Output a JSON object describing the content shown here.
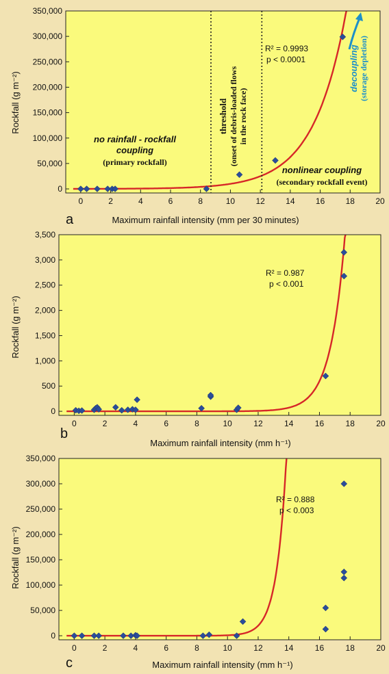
{
  "colors": {
    "background": "#f2e3b3",
    "plot_area": "#fafa7c",
    "curve": "#d62728",
    "points": "#2a4d9a",
    "accent_blue": "#1e90c8"
  },
  "chart_data": [
    {
      "panel": "a",
      "type": "scatter",
      "xlabel": "Maximum rainfall intensity (mm per 30 minutes)",
      "ylabel": "Rockfall (g m⁻²)",
      "xlim": [
        -1,
        20
      ],
      "ylim": [
        -8000,
        350000
      ],
      "xticks": [
        "0",
        "2",
        "4",
        "6",
        "8",
        "10",
        "12",
        "14",
        "16",
        "18",
        "20"
      ],
      "yticks": [
        "0",
        "50,000",
        "100,000",
        "150,000",
        "200,000",
        "250,000",
        "300,000",
        "350,000"
      ],
      "grid": false,
      "points": [
        {
          "x": 0.0,
          "y": 0
        },
        {
          "x": 0.4,
          "y": 0
        },
        {
          "x": 1.1,
          "y": 0
        },
        {
          "x": 1.8,
          "y": 0
        },
        {
          "x": 2.1,
          "y": 0
        },
        {
          "x": 2.3,
          "y": 0
        },
        {
          "x": 8.4,
          "y": 0
        },
        {
          "x": 10.6,
          "y": 28000
        },
        {
          "x": 13.0,
          "y": 56000
        },
        {
          "x": 17.5,
          "y": 299000
        }
      ],
      "fit": {
        "type": "exponential",
        "a": 100,
        "b": 0.46,
        "xmax": 17.9
      },
      "stats": [
        "R² = 0.9993",
        "p  < 0.0001"
      ],
      "threshold_lines": [
        8.7,
        12.1
      ],
      "annotations": {
        "no_coupling": [
          "no rainfall - rockfall",
          "coupling"
        ],
        "primary": "(primary rockfall)",
        "threshold": [
          "threshold",
          "(onset of debris-loaded flows",
          "in the rock face)"
        ],
        "nonlinear": "nonlinear coupling",
        "secondary": "(secondary rockfall event)",
        "decoupling": "decoupling",
        "storage": "(storage depletion)"
      }
    },
    {
      "panel": "b",
      "type": "scatter",
      "xlabel": "Maximum rainfall intensity (mm h⁻¹)",
      "ylabel": "Rockfall (g m⁻²)",
      "xlim": [
        -1,
        20
      ],
      "ylim": [
        -80,
        3500
      ],
      "xticks": [
        "0",
        "2",
        "4",
        "6",
        "8",
        "10",
        "12",
        "14",
        "16",
        "18",
        "20"
      ],
      "yticks": [
        "0",
        "500",
        "1,000",
        "1,500",
        "2,000",
        "2,500",
        "3,000",
        "3,500"
      ],
      "grid": false,
      "points": [
        {
          "x": 0.1,
          "y": 20
        },
        {
          "x": 0.3,
          "y": 10
        },
        {
          "x": 0.5,
          "y": 15
        },
        {
          "x": 1.3,
          "y": 30
        },
        {
          "x": 1.4,
          "y": 60
        },
        {
          "x": 1.5,
          "y": 80
        },
        {
          "x": 1.6,
          "y": 40
        },
        {
          "x": 2.7,
          "y": 80
        },
        {
          "x": 3.1,
          "y": 20
        },
        {
          "x": 3.5,
          "y": 30
        },
        {
          "x": 3.8,
          "y": 40
        },
        {
          "x": 4.0,
          "y": 30
        },
        {
          "x": 4.1,
          "y": 230
        },
        {
          "x": 8.3,
          "y": 60
        },
        {
          "x": 8.9,
          "y": 290
        },
        {
          "x": 8.9,
          "y": 320
        },
        {
          "x": 10.6,
          "y": 30
        },
        {
          "x": 10.7,
          "y": 70
        },
        {
          "x": 16.4,
          "y": 700
        },
        {
          "x": 17.6,
          "y": 2680
        },
        {
          "x": 17.6,
          "y": 3150
        }
      ],
      "fit": {
        "type": "exponential",
        "a": 2.58e-05,
        "b": 1.06,
        "xmax": 17.7
      },
      "stats": [
        "R² = 0.987",
        "p  < 0.001"
      ]
    },
    {
      "panel": "c",
      "type": "scatter",
      "xlabel": "Maximum rainfall intensity (mm h⁻¹)",
      "ylabel": "Rockfall (g m⁻²)",
      "xlim": [
        -1,
        20
      ],
      "ylim": [
        -8000,
        350000
      ],
      "xticks": [
        "0",
        "2",
        "4",
        "6",
        "8",
        "10",
        "12",
        "14",
        "16",
        "18",
        "20"
      ],
      "yticks": [
        "0",
        "50,000",
        "100,000",
        "150,000",
        "200,000",
        "250,000",
        "300,000",
        "350,000"
      ],
      "grid": false,
      "points": [
        {
          "x": 0.0,
          "y": 0
        },
        {
          "x": 0.5,
          "y": 0
        },
        {
          "x": 1.3,
          "y": 0
        },
        {
          "x": 1.6,
          "y": 0
        },
        {
          "x": 3.2,
          "y": 0
        },
        {
          "x": 3.7,
          "y": 0
        },
        {
          "x": 4.0,
          "y": 1000
        },
        {
          "x": 4.1,
          "y": 0
        },
        {
          "x": 8.4,
          "y": 0
        },
        {
          "x": 8.8,
          "y": 2000
        },
        {
          "x": 10.6,
          "y": 0
        },
        {
          "x": 11.0,
          "y": 28000
        },
        {
          "x": 16.4,
          "y": 55000
        },
        {
          "x": 16.4,
          "y": 13000
        },
        {
          "x": 17.6,
          "y": 300000
        },
        {
          "x": 17.6,
          "y": 126000
        },
        {
          "x": 17.6,
          "y": 114000
        }
      ],
      "fit": {
        "type": "exponential",
        "a": 0.000147,
        "b": 1.56,
        "xmax": 18.1
      },
      "stats": [
        "R² = 0.888",
        "p  < 0.003"
      ]
    }
  ]
}
